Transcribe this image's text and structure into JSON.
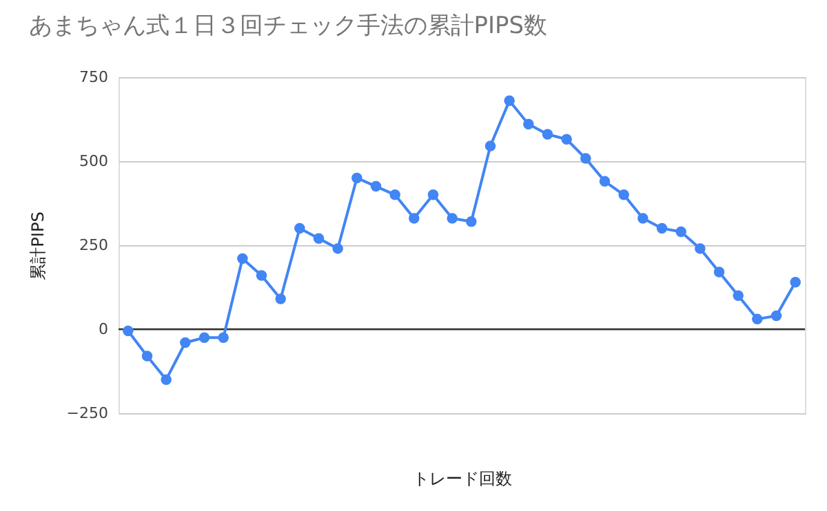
{
  "chart_data": {
    "type": "line",
    "title": "あまちゃん式１日３回チェック手法の累計PIPS数",
    "xlabel": "トレード回数",
    "ylabel": "累計PIPS",
    "categories": [
      null,
      null,
      null,
      null,
      null,
      null,
      null,
      null,
      null,
      null,
      null,
      null,
      null,
      null,
      null,
      null,
      null,
      null,
      null,
      null,
      null,
      null,
      null,
      null,
      null,
      null,
      null,
      null,
      null,
      null,
      null,
      null,
      null,
      null,
      null,
      null
    ],
    "series": [
      {
        "color": "#4285f4",
        "values": [
          -5,
          -80,
          -150,
          -40,
          -25,
          -25,
          210,
          160,
          90,
          300,
          270,
          240,
          450,
          425,
          400,
          330,
          400,
          330,
          320,
          545,
          680,
          610,
          580,
          565,
          508,
          440,
          400,
          330,
          300,
          290,
          240,
          170,
          100,
          30,
          40,
          140
        ]
      }
    ],
    "ylim": [
      -250,
      750
    ],
    "yticks": [
      -250,
      0,
      250,
      500,
      750
    ],
    "grid": "y",
    "marker": "circle",
    "line_style": "solid",
    "ref_lines": [
      {
        "axis": "y",
        "value": 0,
        "color": "#333333"
      }
    ]
  }
}
